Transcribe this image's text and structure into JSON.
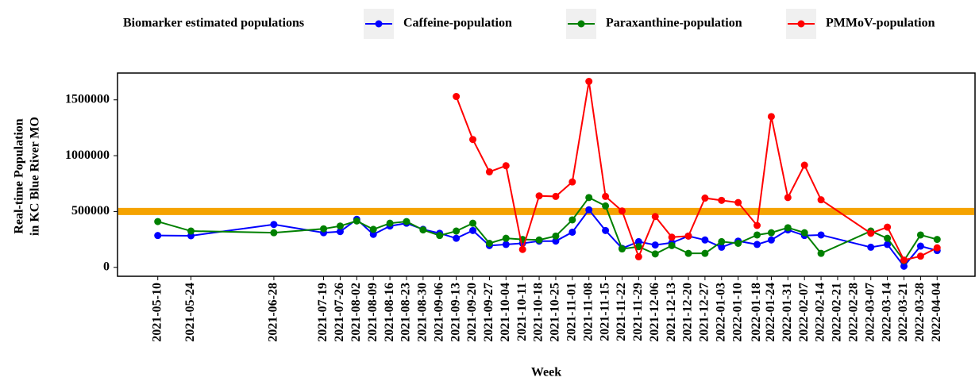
{
  "chart_data": {
    "type": "line",
    "legend_title": "Biomarker estimated populations",
    "legend": "top",
    "ylabel": [
      "Real-time Population",
      "in KC Blue River MO"
    ],
    "xlabel": "Week",
    "xlim": [
      "2021-04-23",
      "2022-04-20"
    ],
    "xticks": [
      "2021-05-10",
      "2021-05-24",
      "2021-06-28",
      "2021-07-19",
      "2021-07-26",
      "2021-08-02",
      "2021-08-09",
      "2021-08-16",
      "2021-08-23",
      "2021-08-30",
      "2021-09-06",
      "2021-09-13",
      "2021-09-20",
      "2021-09-27",
      "2021-10-04",
      "2021-10-11",
      "2021-10-18",
      "2021-10-25",
      "2021-11-01",
      "2021-11-08",
      "2021-11-15",
      "2021-11-22",
      "2021-11-29",
      "2021-12-06",
      "2021-12-13",
      "2021-12-20",
      "2021-12-27",
      "2022-01-03",
      "2022-01-10",
      "2022-01-18",
      "2022-01-24",
      "2022-01-31",
      "2022-02-07",
      "2022-02-14",
      "2022-02-21",
      "2022-02-28",
      "2022-03-07",
      "2022-03-14",
      "2022-03-21",
      "2022-03-28",
      "2022-04-04"
    ],
    "ylim": [
      -80000,
      1740000
    ],
    "yticks": [
      0,
      500000,
      1000000,
      1500000
    ],
    "reference_line": {
      "value": 500000,
      "color": "#f5a300"
    },
    "series": [
      {
        "name": "Caffeine-population",
        "color": "#0000ff",
        "x": [
          "2021-05-10",
          "2021-05-24",
          "2021-06-28",
          "2021-07-19",
          "2021-07-26",
          "2021-08-02",
          "2021-08-09",
          "2021-08-16",
          "2021-08-23",
          "2021-08-30",
          "2021-09-06",
          "2021-09-13",
          "2021-09-20",
          "2021-09-27",
          "2021-10-04",
          "2021-10-11",
          "2021-10-18",
          "2021-10-25",
          "2021-11-01",
          "2021-11-08",
          "2021-11-15",
          "2021-11-22",
          "2021-11-29",
          "2021-12-06",
          "2021-12-13",
          "2021-12-20",
          "2021-12-27",
          "2022-01-03",
          "2022-01-10",
          "2022-01-18",
          "2022-01-24",
          "2022-01-31",
          "2022-02-07",
          "2022-02-14",
          "2022-03-07",
          "2022-03-14",
          "2022-03-21",
          "2022-03-28",
          "2022-04-04"
        ],
        "values": [
          285000,
          283000,
          384000,
          310000,
          320000,
          430000,
          295000,
          370000,
          395000,
          340000,
          305000,
          260000,
          330000,
          195000,
          205000,
          215000,
          235000,
          235000,
          315000,
          515000,
          330000,
          170000,
          230000,
          200000,
          220000,
          280000,
          245000,
          180000,
          235000,
          205000,
          245000,
          335000,
          285000,
          290000,
          180000,
          205000,
          10000,
          190000,
          150000
        ]
      },
      {
        "name": "Paraxanthine-population",
        "color": "#008000",
        "x": [
          "2021-05-10",
          "2021-05-24",
          "2021-06-28",
          "2021-07-19",
          "2021-07-26",
          "2021-08-02",
          "2021-08-09",
          "2021-08-16",
          "2021-08-23",
          "2021-08-30",
          "2021-09-06",
          "2021-09-13",
          "2021-09-20",
          "2021-09-27",
          "2021-10-04",
          "2021-10-11",
          "2021-10-18",
          "2021-10-25",
          "2021-11-01",
          "2021-11-08",
          "2021-11-15",
          "2021-11-22",
          "2021-11-29",
          "2021-12-06",
          "2021-12-13",
          "2021-12-20",
          "2021-12-27",
          "2022-01-03",
          "2022-01-10",
          "2022-01-18",
          "2022-01-24",
          "2022-01-31",
          "2022-02-07",
          "2022-02-14",
          "2022-03-07",
          "2022-03-14",
          "2022-03-21",
          "2022-03-28",
          "2022-04-04"
        ],
        "values": [
          410000,
          325000,
          310000,
          345000,
          370000,
          415000,
          340000,
          395000,
          410000,
          335000,
          285000,
          325000,
          395000,
          215000,
          260000,
          250000,
          245000,
          280000,
          425000,
          625000,
          550000,
          165000,
          185000,
          120000,
          195000,
          125000,
          125000,
          230000,
          215000,
          290000,
          310000,
          355000,
          310000,
          125000,
          325000,
          260000,
          60000,
          290000,
          250000
        ]
      },
      {
        "name": "PMMoV-population",
        "color": "#ff0000",
        "x": [
          "2021-09-13",
          "2021-09-20",
          "2021-09-27",
          "2021-10-04",
          "2021-10-11",
          "2021-10-18",
          "2021-10-25",
          "2021-11-01",
          "2021-11-08",
          "2021-11-15",
          "2021-11-22",
          "2021-11-29",
          "2021-12-06",
          "2021-12-13",
          "2021-12-20",
          "2021-12-27",
          "2022-01-03",
          "2022-01-10",
          "2022-01-18",
          "2022-01-24",
          "2022-01-31",
          "2022-02-07",
          "2022-02-14",
          "2022-03-07",
          "2022-03-14",
          "2022-03-21",
          "2022-03-28",
          "2022-04-04"
        ],
        "values": [
          1530000,
          1145000,
          855000,
          910000,
          160000,
          640000,
          635000,
          765000,
          1665000,
          635000,
          505000,
          95000,
          455000,
          270000,
          280000,
          620000,
          600000,
          580000,
          375000,
          1350000,
          625000,
          915000,
          605000,
          305000,
          360000,
          65000,
          100000,
          175000
        ]
      }
    ]
  }
}
